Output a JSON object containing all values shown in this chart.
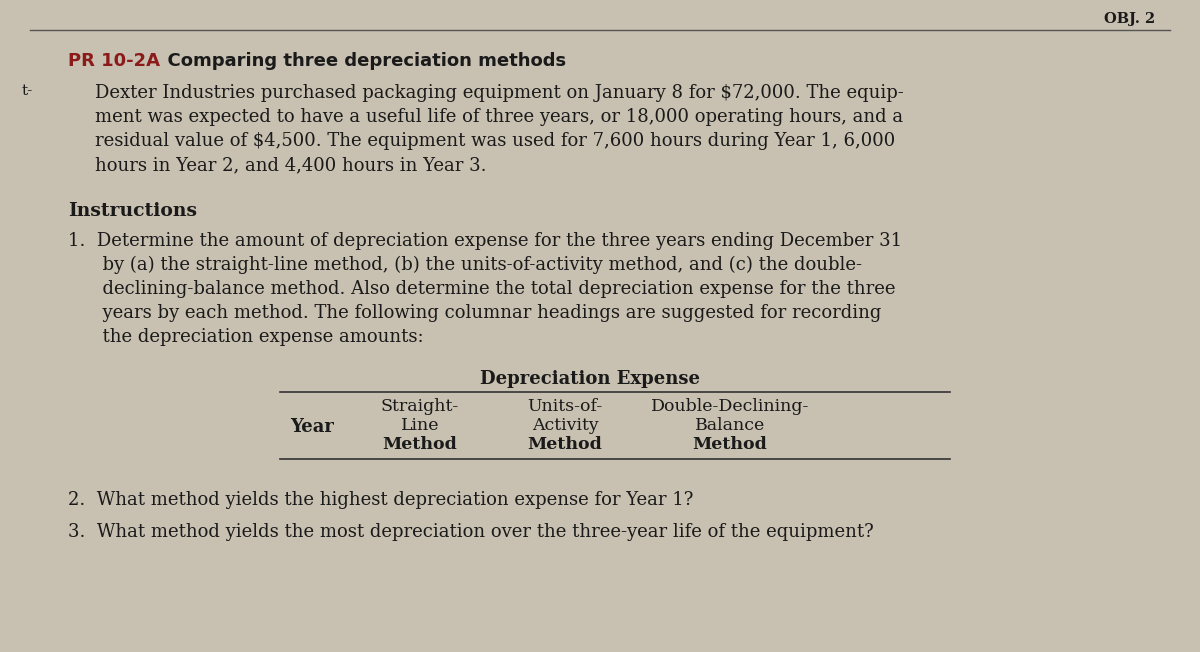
{
  "background_color": "#c8c0b0",
  "obj_label": "OBJ. 2",
  "title_prefix": "PR 10-2A",
  "title": "  Comparing three depreciation methods",
  "body_text": [
    "Dexter Industries purchased packaging equipment on January 8 for $72,000. The equip-",
    "ment was expected to have a useful life of three years, or 18,000 operating hours, and a",
    "residual value of $4,500. The equipment was used for 7,600 hours during Year 1, 6,000",
    "hours in Year 2, and 4,400 hours in Year 3."
  ],
  "instructions_label": "Instructions",
  "instructions": [
    "1.  Determine the amount of depreciation expense for the three years ending December 31",
    "      by (a) the straight-line method, (b) the units-of-activity method, and (c) the double-",
    "      declining-balance method. Also determine the total depreciation expense for the three",
    "      years by each method. The following columnar headings are suggested for recording",
    "      the depreciation expense amounts:"
  ],
  "table_header_main": "Depreciation Expense",
  "col_year": "Year",
  "col1_line1": "Straight-",
  "col1_line2": "Line",
  "col1_line3": "Method",
  "col2_line1": "Units-of-",
  "col2_line2": "Activity",
  "col2_line3": "Method",
  "col3_line1": "Double-Declining-",
  "col3_line2": "Balance",
  "col3_line3": "Method",
  "question2": "2.  What method yields the highest depreciation expense for Year 1?",
  "question3": "3.  What method yields the most depreciation over the three-year life of the equipment?",
  "prefix_color": "#8b1a1a",
  "text_color": "#1a1a1a"
}
